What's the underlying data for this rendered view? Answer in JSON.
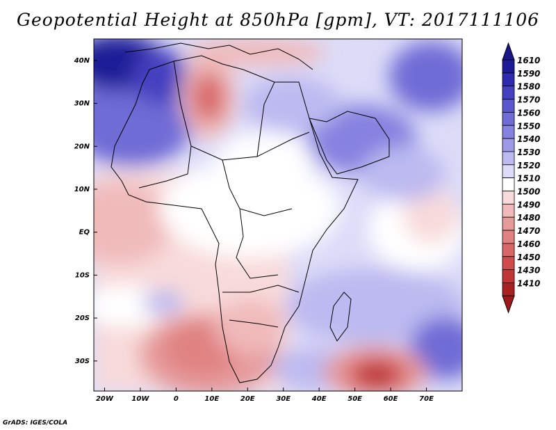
{
  "title": "Geopotential Height at 850hPa [gpm], VT: 2017111106",
  "credit": "GrADS: IGES/COLA",
  "map": {
    "lon_range": [
      -23,
      80
    ],
    "lat_range": [
      -37,
      45
    ],
    "lon_ticks": [
      "20W",
      "10W",
      "0",
      "10E",
      "20E",
      "30E",
      "40E",
      "50E",
      "60E",
      "70E"
    ],
    "lat_ticks": [
      "40N",
      "30N",
      "20N",
      "10N",
      "EQ",
      "10S",
      "20S",
      "30S"
    ]
  },
  "colorbar": {
    "labels": [
      "1610",
      "1590",
      "1580",
      "1570",
      "1560",
      "1550",
      "1540",
      "1530",
      "1520",
      "1510",
      "1500",
      "1490",
      "1480",
      "1470",
      "1460",
      "1450",
      "1430",
      "1410"
    ],
    "colors": [
      "#1e1a96",
      "#2e2aae",
      "#4440c0",
      "#5a56cc",
      "#706cd6",
      "#8682e0",
      "#9e9ae8",
      "#bcbaf0",
      "#dcdcf8",
      "#ffffff",
      "#f8dada",
      "#f0baba",
      "#e69a9a",
      "#e08282",
      "#d86868",
      "#d04c4c",
      "#c03636",
      "#a82020"
    ],
    "max_color": "#1a168a",
    "min_color": "#a01818"
  },
  "chart_data": {
    "type": "heatmap",
    "title": "Geopotential Height at 850hPa [gpm], VT: 2017111106",
    "variable": "geopotential height",
    "units": "gpm",
    "level": "850hPa",
    "valid_time": "2017111106",
    "lon_range": [
      -23,
      80
    ],
    "lat_range": [
      -37,
      45
    ]
  }
}
